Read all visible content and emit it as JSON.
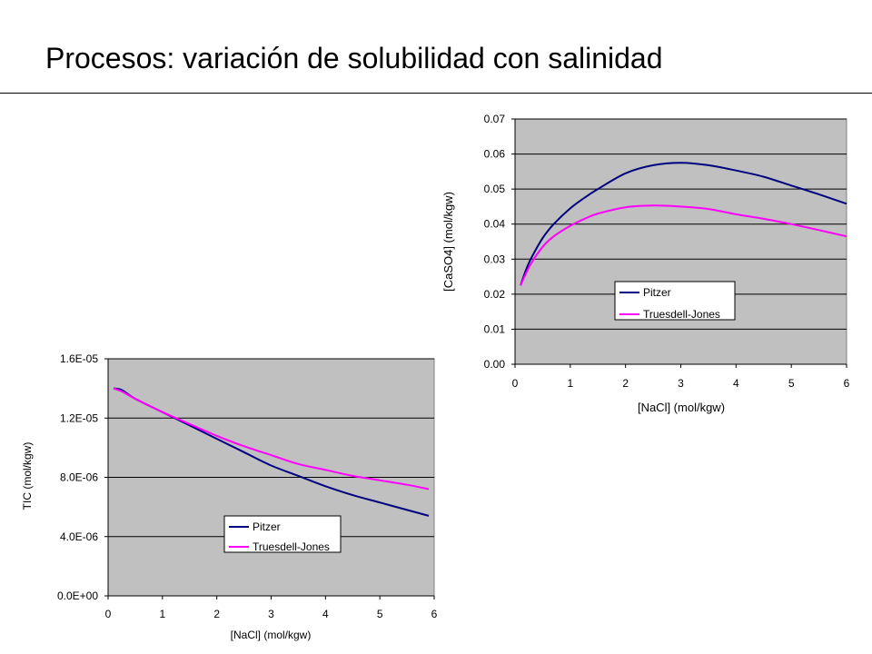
{
  "slide": {
    "title": "Procesos: variación de solubilidad con salinidad"
  },
  "colors": {
    "plot_background": "#c0c0c0",
    "grid": "#000000",
    "pitzer": "#000080",
    "truesdell_jones": "#ff00ff"
  },
  "chart_data": [
    {
      "type": "line",
      "title": "",
      "xlabel": "[NaCl] (mol/kgw)",
      "ylabel": "[CaSO4] (mol/kgw)",
      "xlim": [
        0,
        6
      ],
      "ylim": [
        0,
        0.07
      ],
      "x_ticks": [
        "0",
        "1",
        "2",
        "3",
        "4",
        "5",
        "6"
      ],
      "y_ticks": [
        "0.00",
        "0.01",
        "0.02",
        "0.03",
        "0.04",
        "0.05",
        "0.06",
        "0.07"
      ],
      "grid": "horizontal",
      "legend_position": "bottom-center",
      "series": [
        {
          "name": "Pitzer",
          "color": "#000080",
          "x": [
            0.1,
            0.2,
            0.3,
            0.5,
            0.7,
            1.0,
            1.3,
            1.5,
            2.0,
            2.5,
            3.0,
            3.5,
            4.0,
            4.5,
            5.0,
            5.5,
            6.0
          ],
          "y": [
            0.0225,
            0.027,
            0.0305,
            0.036,
            0.04,
            0.0445,
            0.048,
            0.05,
            0.0545,
            0.0568,
            0.0575,
            0.0568,
            0.0553,
            0.0535,
            0.051,
            0.0485,
            0.0458
          ]
        },
        {
          "name": "Truesdell-Jones",
          "color": "#ff00ff",
          "x": [
            0.1,
            0.2,
            0.3,
            0.5,
            0.7,
            1.0,
            1.3,
            1.5,
            2.0,
            2.5,
            3.0,
            3.5,
            4.0,
            4.5,
            5.0,
            5.5,
            6.0
          ],
          "y": [
            0.0225,
            0.026,
            0.029,
            0.0335,
            0.0365,
            0.0395,
            0.0418,
            0.043,
            0.0448,
            0.0453,
            0.045,
            0.0443,
            0.0428,
            0.0415,
            0.04,
            0.0383,
            0.0365
          ]
        }
      ]
    },
    {
      "type": "line",
      "title": "",
      "xlabel": "[NaCl] (mol/kgw)",
      "ylabel": "TIC (mol/kgw)",
      "xlim": [
        0,
        6
      ],
      "ylim": [
        0,
        1.6e-05
      ],
      "x_ticks": [
        "0",
        "1",
        "2",
        "3",
        "4",
        "5",
        "6"
      ],
      "y_ticks": [
        "0.0E+00",
        "4.0E-06",
        "8.0E-06",
        "1.2E-05",
        "1.6E-05"
      ],
      "grid": "horizontal",
      "legend_position": "bottom-center",
      "series": [
        {
          "name": "Pitzer",
          "color": "#000080",
          "x": [
            0.1,
            0.25,
            0.5,
            1.0,
            1.5,
            2.0,
            2.5,
            3.0,
            3.5,
            4.0,
            4.5,
            5.0,
            5.5,
            5.9
          ],
          "y": [
            1.4e-05,
            1.39e-05,
            1.33e-05,
            1.24e-05,
            1.15e-05,
            1.06e-05,
            9.7e-06,
            8.8e-06,
            8.1e-06,
            7.4e-06,
            6.8e-06,
            6.3e-06,
            5.8e-06,
            5.4e-06
          ],
          "max_label_note": ""
        },
        {
          "name": "Truesdell-Jones",
          "color": "#ff00ff",
          "x": [
            0.1,
            0.25,
            0.5,
            1.0,
            1.5,
            2.0,
            2.5,
            3.0,
            3.5,
            4.0,
            4.5,
            5.0,
            5.5,
            5.9
          ],
          "y": [
            1.4e-05,
            1.38e-05,
            1.33e-05,
            1.24e-05,
            1.16e-05,
            1.08e-05,
            1.01e-05,
            9.5e-06,
            8.9e-06,
            8.5e-06,
            8.1e-06,
            7.8e-06,
            7.5e-06,
            7.2e-06
          ]
        }
      ]
    }
  ]
}
